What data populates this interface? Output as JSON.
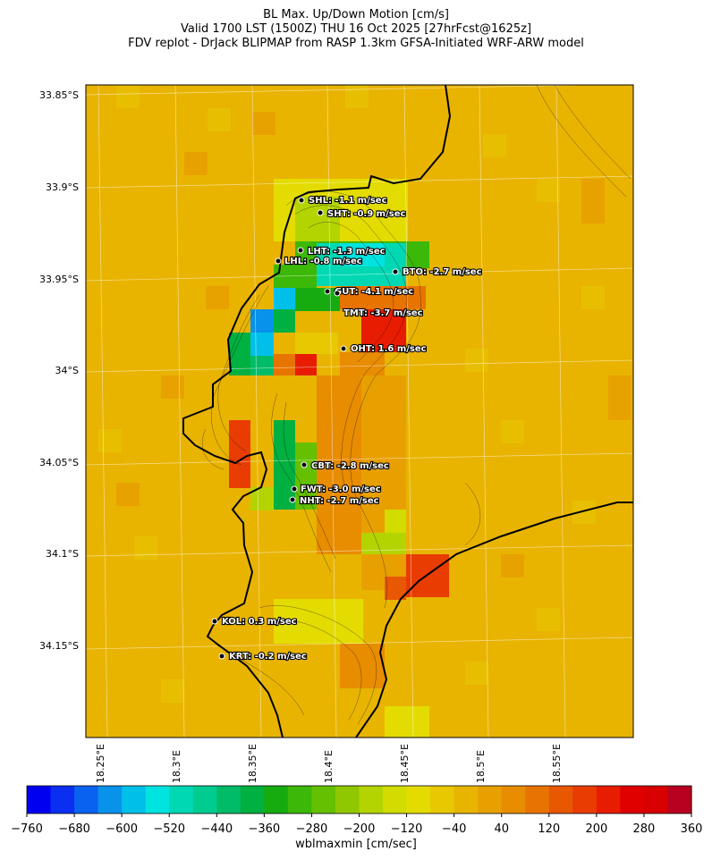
{
  "title": {
    "line1": "BL Max. Up/Down Motion [cm/s]",
    "line2": "Valid 1700 LST (1500Z) THU 16 Oct 2025 [27hrFcst@1625z]",
    "line3": "FDV replot - DrJack BLIPMAP from RASP 1.3km GFSA-Initiated WRF-ARW model"
  },
  "lat_labels": [
    "33.85°S",
    "33.9°S",
    "33.95°S",
    "34°S",
    "34.05°S",
    "34.1°S",
    "34.15°S"
  ],
  "lon_labels": [
    "18.25°E",
    "18.3°E",
    "18.35°E",
    "18.4°E",
    "18.45°E",
    "18.5°E",
    "18.55°E"
  ],
  "stations": [
    {
      "name": "SHL",
      "label": "SHL: -1.1 m/sec",
      "value": -1.1
    },
    {
      "name": "SHT",
      "label": "SHT: -0.9 m/sec",
      "value": -0.9
    },
    {
      "name": "LHT",
      "label": "LHT: -1.3 m/sec",
      "value": -1.3
    },
    {
      "name": "LHL",
      "label": "LHL: -0.8 m/sec",
      "value": -0.8
    },
    {
      "name": "BTO",
      "label": "BTO: -2.7 m/sec",
      "value": -2.7
    },
    {
      "name": "GUT",
      "label": "GUT: -4.1 m/sec",
      "value": -4.1
    },
    {
      "name": "TMT",
      "label": "TMT: -3.7 m/sec",
      "value": -3.7
    },
    {
      "name": "OHT",
      "label": "OHT: 1.6 m/sec",
      "value": 1.6
    },
    {
      "name": "CBT",
      "label": "CBT: -2.8 m/sec",
      "value": -2.8
    },
    {
      "name": "FWT",
      "label": "FWT: -3.0 m/sec",
      "value": -3.0
    },
    {
      "name": "NHT",
      "label": "NHT: -2.7 m/sec",
      "value": -2.7
    },
    {
      "name": "KOL",
      "label": "KOL: 0.3 m/sec",
      "value": 0.3
    },
    {
      "name": "KRT",
      "label": "KRT: -0.2 m/sec",
      "value": -0.2
    }
  ],
  "colorbar": {
    "label": "wblmaxmin [cm/sec]",
    "min": -760,
    "max": 360,
    "step": 40,
    "tick_labels": [
      "−760",
      "−680",
      "−600",
      "−520",
      "−440",
      "−360",
      "−280",
      "−200",
      "−120",
      "−40",
      "40",
      "120",
      "200",
      "280",
      "360"
    ],
    "colors": [
      "#0000f0",
      "#0a2ff0",
      "#0a62f0",
      "#0892ea",
      "#00c0ea",
      "#00e4e0",
      "#00d8b4",
      "#00cc90",
      "#00bc68",
      "#00b040",
      "#16ac10",
      "#3cb808",
      "#64c000",
      "#90c800",
      "#b4d400",
      "#d2dc00",
      "#e4dc00",
      "#e8c800",
      "#e8b400",
      "#e8a000",
      "#e88c00",
      "#e87400",
      "#e85800",
      "#e83c00",
      "#e81c00",
      "#e00000",
      "#d80000",
      "#b80020"
    ]
  }
}
